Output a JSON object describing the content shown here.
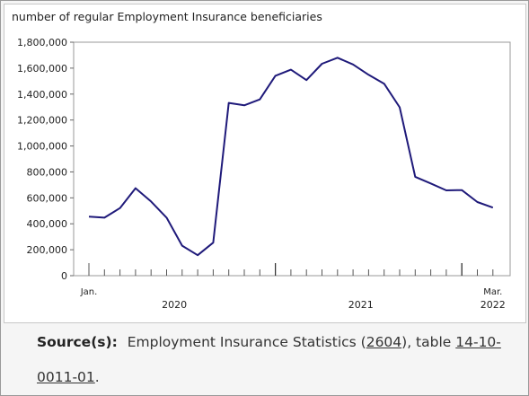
{
  "chart_data": {
    "type": "line",
    "title": "number of regular Employment Insurance beneficiaries",
    "xlabel": "",
    "ylabel": "",
    "ylim": [
      0,
      1800000
    ],
    "yticks": [
      0,
      200000,
      400000,
      600000,
      800000,
      1000000,
      1200000,
      1400000,
      1600000,
      1800000
    ],
    "ytick_labels": [
      "0",
      "200,000",
      "400,000",
      "600,000",
      "800,000",
      "1,000,000",
      "1,200,000",
      "1,400,000",
      "1,600,000",
      "1,800,000"
    ],
    "x": [
      "2020-01",
      "2020-02",
      "2020-03",
      "2020-04",
      "2020-05",
      "2020-06",
      "2020-07",
      "2020-08",
      "2020-09",
      "2020-10",
      "2020-11",
      "2020-12",
      "2021-01",
      "2021-02",
      "2021-03",
      "2021-04",
      "2021-05",
      "2021-06",
      "2021-07",
      "2021-08",
      "2021-09",
      "2021-10",
      "2021-11",
      "2021-12",
      "2022-01",
      "2022-02",
      "2022-03"
    ],
    "series": [
      {
        "name": "",
        "color": "#1f1a7a",
        "values": [
          455000,
          447000,
          521000,
          674000,
          572000,
          447000,
          231000,
          158000,
          255000,
          1332000,
          1313000,
          1359000,
          1541000,
          1588000,
          1508000,
          1634000,
          1680000,
          1628000,
          1549000,
          1480000,
          1298000,
          762000,
          711000,
          658000,
          660000,
          568000,
          525000
        ]
      }
    ],
    "x_tick_labels": [
      {
        "index": 0,
        "text": "Jan."
      },
      {
        "index": 26,
        "text": "Mar."
      }
    ],
    "year_labels": [
      {
        "text": "2020",
        "from": 0,
        "to": 11
      },
      {
        "text": "2021",
        "from": 12,
        "to": 23
      },
      {
        "text": "2022",
        "from": 26,
        "to": 26
      }
    ],
    "grid": false,
    "legend": "none"
  },
  "source": {
    "label": "Source(s):",
    "text_before": "Employment Insurance Statistics (",
    "survey_link": "2604",
    "text_middle": "), table ",
    "table_link": "14-10-0011-01",
    "text_after": "."
  }
}
